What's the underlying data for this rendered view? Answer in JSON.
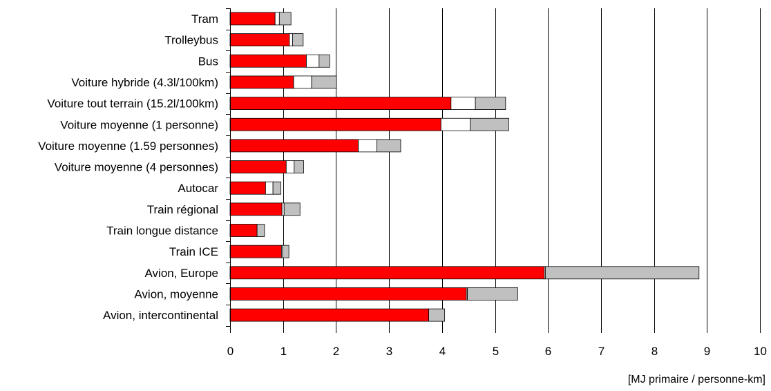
{
  "chart_data": {
    "type": "bar",
    "orientation": "horizontal",
    "stacked": true,
    "categories": [
      "Tram",
      "Trolleybus",
      "Bus",
      "Voiture hybride (4.3l/100km)",
      "Voiture tout terrain (15.2l/100km)",
      "Voiture moyenne (1 personne)",
      "Voiture moyenne (1.59 personnes)",
      "Voiture moyenne (4 personnes)",
      "Autocar",
      "Train régional",
      "Train longue distance",
      "Train ICE",
      "Avion, Europe",
      "Avion, moyenne",
      "Avion, intercontinental"
    ],
    "series": [
      {
        "color": "#ff0000",
        "values": [
          0.85,
          1.12,
          1.44,
          1.2,
          4.17,
          3.98,
          2.42,
          1.06,
          0.67,
          0.98,
          0.51,
          0.97,
          5.93,
          4.46,
          3.75
        ]
      },
      {
        "color": "#ffffff",
        "values": [
          0.08,
          0.06,
          0.24,
          0.34,
          0.46,
          0.55,
          0.35,
          0.15,
          0.14,
          0.04,
          0.0,
          0.02,
          0.02,
          0.02,
          0.0
        ]
      },
      {
        "color": "#c0c0c0",
        "values": [
          0.22,
          0.2,
          0.2,
          0.47,
          0.57,
          0.73,
          0.45,
          0.18,
          0.15,
          0.3,
          0.14,
          0.12,
          2.9,
          0.95,
          0.3
        ]
      }
    ],
    "x_ticks": [
      "0",
      "1",
      "2",
      "3",
      "4",
      "5",
      "6",
      "7",
      "8",
      "9",
      "10"
    ],
    "xlim": [
      0,
      10
    ],
    "xlabel": "[MJ primaire / personne-km]",
    "ylabel": "",
    "title": "",
    "grid": "vertical",
    "legend": "none"
  }
}
